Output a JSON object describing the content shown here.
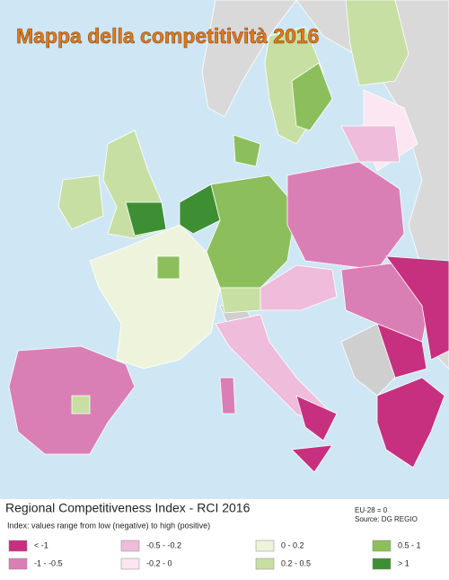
{
  "title": "Mappa della competitività 2016",
  "legend": {
    "title": "Regional Competitiveness Index - RCI 2016",
    "subtitle": "Index: values range from low (negative) to high (positive)",
    "note": "EU-28 = 0",
    "source": "Source: DG REGIO",
    "items": [
      {
        "label": "< -1",
        "color": "#c7307f"
      },
      {
        "label": "-1 - -0.5",
        "color": "#da7fb5"
      },
      {
        "label": "-0.5 - -0.2",
        "color": "#efbcdb"
      },
      {
        "label": "-0.2 - 0",
        "color": "#fbe6f1"
      },
      {
        "label": "0 - 0.2",
        "color": "#eef4dc"
      },
      {
        "label": "0.2 - 0.5",
        "color": "#c8dfa4"
      },
      {
        "label": "0.5 - 1",
        "color": "#8cbf5c"
      },
      {
        "label": "> 1",
        "color": "#3e8f34"
      }
    ]
  }
}
